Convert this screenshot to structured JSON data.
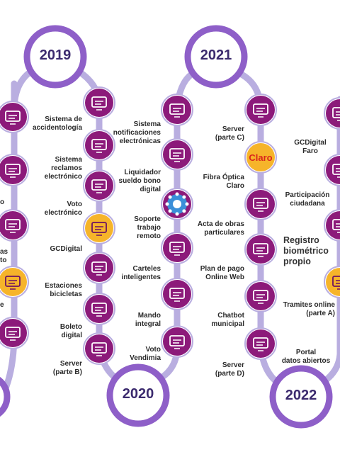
{
  "years": {
    "y2019": "2019",
    "y2020": "2020",
    "y2021": "2021",
    "y2022": "2022"
  },
  "labels": {
    "accidentologia": "Sistema de\naccidentología",
    "reclamos": "Sistema\nreclamos\nelectrónico",
    "voto": "Voto\nelectrónico",
    "gcdigital": "GCDigital",
    "estaciones": "Estaciones\nbicicletas",
    "boleto": "Boleto\ndigital",
    "server_b": "Server\n(parte B)",
    "notificaciones": "Sistema\nnotificaciones\nelectrónicas",
    "liquidador": "Liquidador\nsueldo bono\ndigital",
    "soporte": "Soporte\ntrabajo\nremoto",
    "carteles": "Carteles\ninteligentes",
    "mando": "Mando\nintegral",
    "vendimia": "Voto\nVendimia",
    "server_c": "Server\n(parte C)",
    "fibra": "Fibra Óptica\nClaro",
    "acta": "Acta de obras\nparticulares",
    "plan_pago": "Plan de pago\nOnline Web",
    "chatbot": "Chatbot\nmunicipal",
    "server_d": "Server\n(parte D)",
    "gcdigital_faro": "GCDigital\nFaro",
    "participacion": "Participación\nciudadana",
    "registro": "Registro\nbiométrico\npropio",
    "tramites": "Tramites online\n(parte A)",
    "portal": "Portal\ndatos abiertos",
    "partial_o": "o",
    "partial_as": "as",
    "partial_to": "to",
    "partial_e": "e"
  },
  "logo": {
    "claro": "Claro"
  },
  "colors": {
    "node": "#8c1a7a",
    "node_dark": "#6d1262",
    "path": "#b9aee0",
    "ring": "#8e5fc8",
    "highlight": "#f6b42a",
    "blue": "#3b8fd8",
    "red": "#d9261c"
  },
  "icons": [
    "house-heart-icon",
    "monitor-person-icon",
    "receipt-icon",
    "laptop-icon",
    "network-icon",
    "car-crash-icon",
    "binders-icon",
    "presentation-icon",
    "ballot-box-icon",
    "bicycle-icon",
    "ticket-icon",
    "server-network-icon",
    "chart-icon",
    "money-hand-icon",
    "virus-icon",
    "road-sign-icon",
    "monitor-icon",
    "laptop-screen-icon",
    "cloud-server-icon",
    "claro-logo",
    "worker-icon",
    "calendar-money-icon",
    "chatbot-icon",
    "hand-heart-icon",
    "people-icon",
    "fingerprint-icon",
    "web-icon",
    "open-data-icon"
  ]
}
